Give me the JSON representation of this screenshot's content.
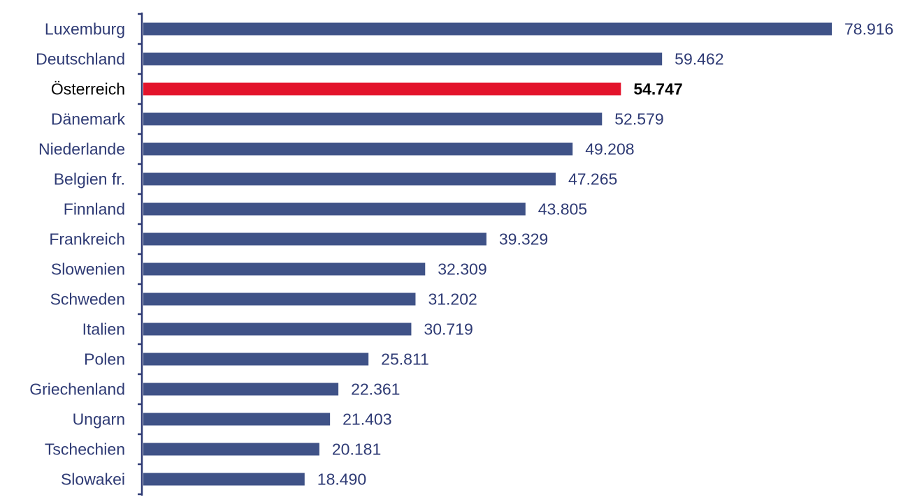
{
  "chart_data": {
    "type": "bar",
    "orientation": "horizontal",
    "title": "",
    "xlabel": "",
    "ylabel": "",
    "categories": [
      "Luxemburg",
      "Deutschland",
      "Österreich",
      "Dänemark",
      "Niederlande",
      "Belgien fr.",
      "Finnland",
      "Frankreich",
      "Slowenien",
      "Schweden",
      "Italien",
      "Polen",
      "Griechenland",
      "Ungarn",
      "Tschechien",
      "Slowakei"
    ],
    "values": [
      78916,
      59462,
      54747,
      52579,
      49208,
      47265,
      43805,
      39329,
      32309,
      31202,
      30719,
      25811,
      22361,
      21403,
      20181,
      18490
    ],
    "value_labels": [
      "78.916",
      "59.462",
      "54.747",
      "52.579",
      "49.208",
      "47.265",
      "43.805",
      "39.329",
      "32.309",
      "31.202",
      "30.719",
      "25.811",
      "22.361",
      "21.403",
      "20.181",
      "18.490"
    ],
    "highlight": "Österreich",
    "xlim": [
      0,
      80000
    ],
    "grid": false,
    "legend": "none",
    "colors": {
      "bar": "#3f5287",
      "highlight_bar": "#e3132b",
      "label": "#2e3a74",
      "highlight_label": "#000000",
      "axis": "#2e3a74"
    }
  }
}
